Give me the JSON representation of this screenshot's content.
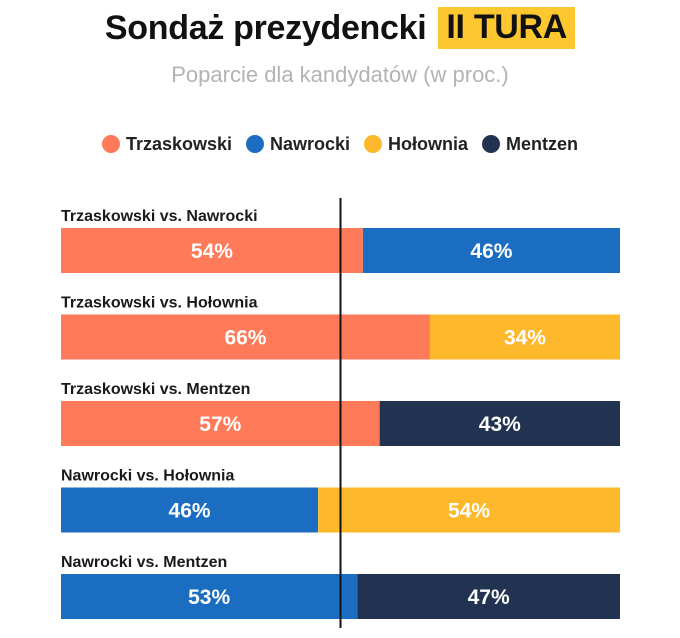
{
  "header": {
    "title": "Sondaż prezydencki",
    "badge": "II TURA",
    "subtitle": "Poparcie dla kandydatów (w proc.)"
  },
  "legend": [
    {
      "name": "Trzaskowski",
      "color": "#ff7a59"
    },
    {
      "name": "Nawrocki",
      "color": "#1b6dc1"
    },
    {
      "name": "Hołownia",
      "color": "#fdb92b"
    },
    {
      "name": "Mentzen",
      "color": "#223352"
    }
  ],
  "chart_data": {
    "type": "bar",
    "stacked": true,
    "orientation": "horizontal",
    "title": "Sondaż prezydencki II TURA",
    "subtitle": "Poparcie dla kandydatów (w proc.)",
    "xlim": [
      0,
      100
    ],
    "reference_line": 50,
    "colors": {
      "Trzaskowski": "#ff7a59",
      "Nawrocki": "#1b6dc1",
      "Hołownia": "#fdb92b",
      "Mentzen": "#223352"
    },
    "pairs": [
      {
        "label": "Trzaskowski vs. Nawrocki",
        "left": "Trzaskowski",
        "left_value": 54,
        "left_text": "54%",
        "right": "Nawrocki",
        "right_value": 46,
        "right_text": "46%"
      },
      {
        "label": "Trzaskowski vs. Hołownia",
        "left": "Trzaskowski",
        "left_value": 66,
        "left_text": "66%",
        "right": "Hołownia",
        "right_value": 34,
        "right_text": "34%"
      },
      {
        "label": "Trzaskowski vs. Mentzen",
        "left": "Trzaskowski",
        "left_value": 57,
        "left_text": "57%",
        "right": "Mentzen",
        "right_value": 43,
        "right_text": "43%"
      },
      {
        "label": "Nawrocki vs. Hołownia",
        "left": "Nawrocki",
        "left_value": 46,
        "left_text": "46%",
        "right": "Hołownia",
        "right_value": 54,
        "right_text": "54%"
      },
      {
        "label": "Nawrocki vs. Mentzen",
        "left": "Nawrocki",
        "left_value": 53,
        "left_text": "53%",
        "right": "Mentzen",
        "right_value": 47,
        "right_text": "47%"
      }
    ]
  }
}
